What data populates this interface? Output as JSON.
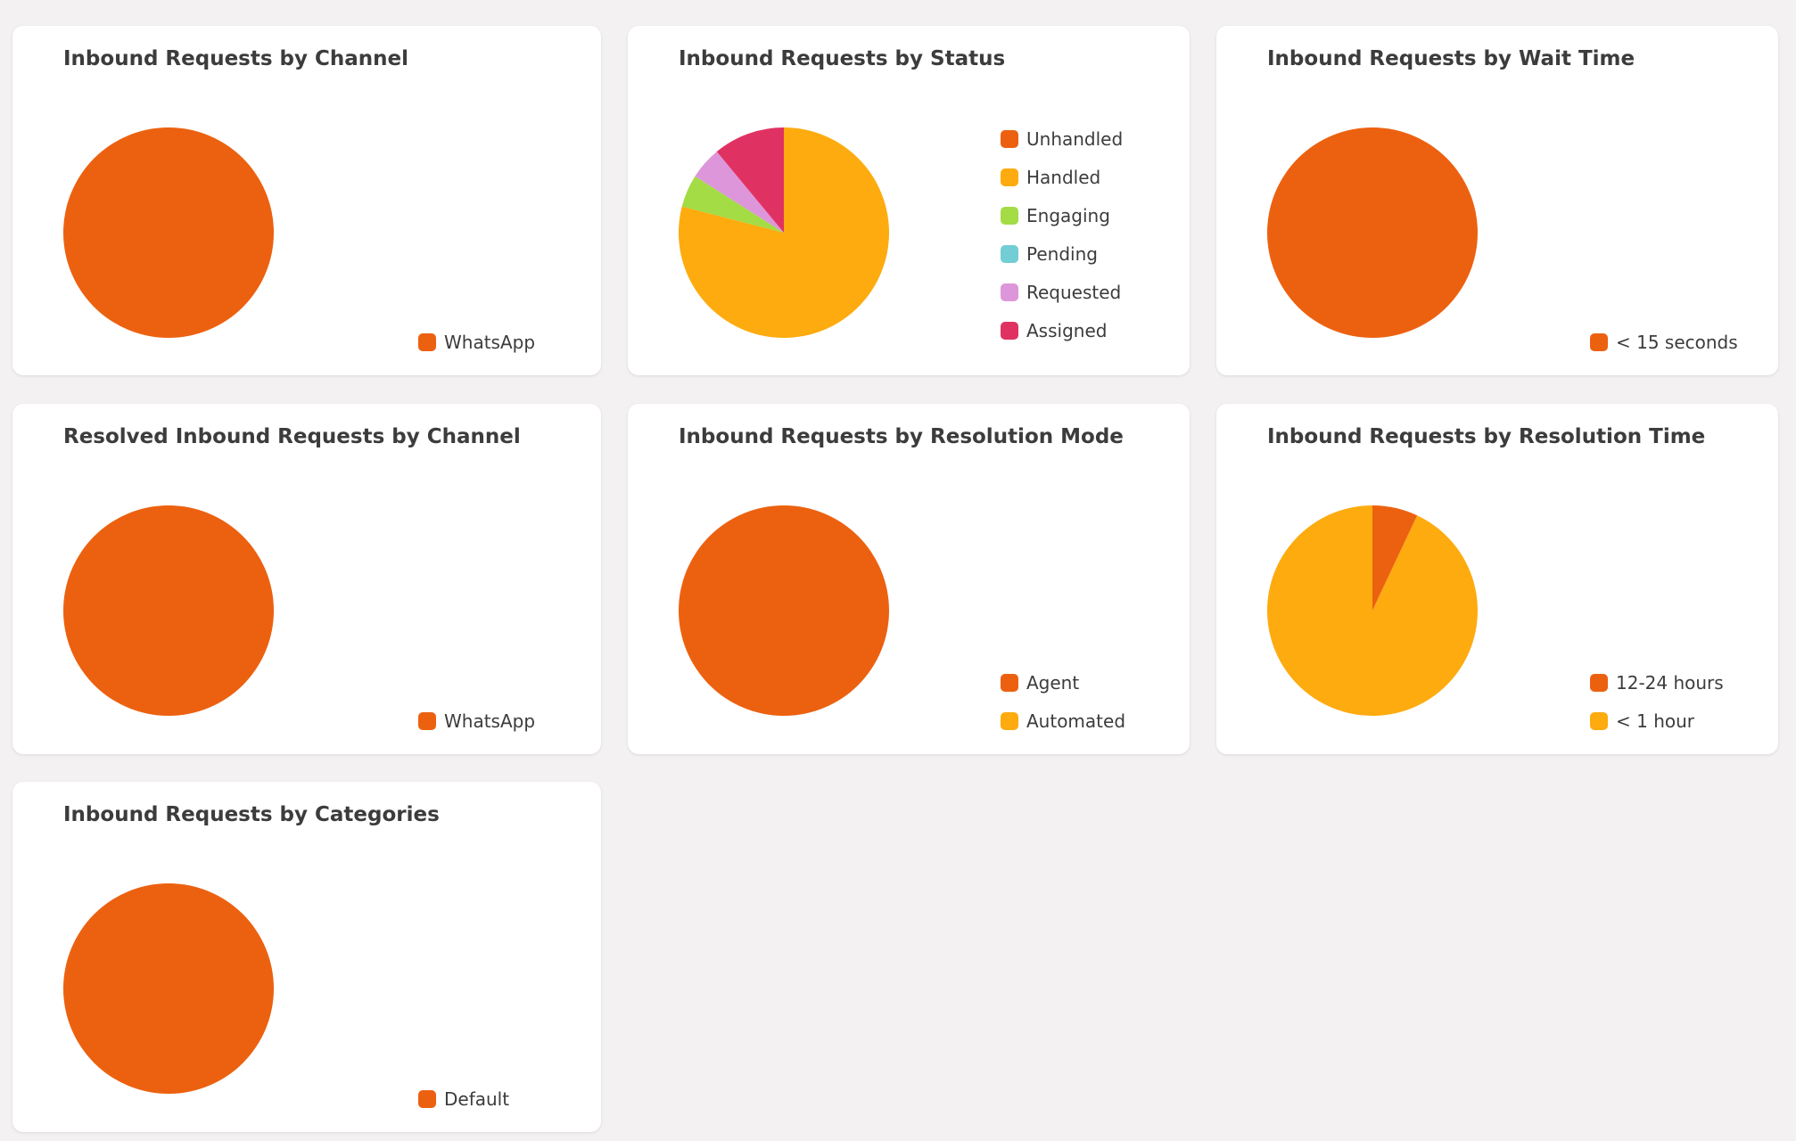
{
  "colors": {
    "orange": "#ec6110",
    "amber": "#fdab0e",
    "green": "#a3dc45",
    "teal": "#72cdd4",
    "lilac": "#dd96da",
    "crimson": "#e03262"
  },
  "chart_data": [
    {
      "type": "pie",
      "title": "Inbound Requests by Channel",
      "legend_placement": "bottom-right",
      "slices": [
        {
          "label": "WhatsApp",
          "value": 100,
          "color": "#ec6110"
        }
      ]
    },
    {
      "type": "pie",
      "title": "Inbound Requests by Status",
      "legend_placement": "right",
      "slices": [
        {
          "label": "Unhandled",
          "value": 0,
          "color": "#ec6110"
        },
        {
          "label": "Handled",
          "value": 79,
          "color": "#fdab0e"
        },
        {
          "label": "Engaging",
          "value": 5,
          "color": "#a3dc45"
        },
        {
          "label": "Pending",
          "value": 0,
          "color": "#72cdd4"
        },
        {
          "label": "Requested",
          "value": 5,
          "color": "#dd96da"
        },
        {
          "label": "Assigned",
          "value": 11,
          "color": "#e03262"
        }
      ]
    },
    {
      "type": "pie",
      "title": "Inbound Requests by Wait Time",
      "legend_placement": "bottom-right",
      "slices": [
        {
          "label": "< 15 seconds",
          "value": 100,
          "color": "#ec6110"
        }
      ]
    },
    {
      "type": "pie",
      "title": "Resolved Inbound Requests by Channel",
      "legend_placement": "bottom-right",
      "slices": [
        {
          "label": "WhatsApp",
          "value": 100,
          "color": "#ec6110"
        }
      ]
    },
    {
      "type": "pie",
      "title": "Inbound Requests by Resolution Mode",
      "legend_placement": "bottom-right",
      "slices": [
        {
          "label": "Agent",
          "value": 100,
          "color": "#ec6110"
        },
        {
          "label": "Automated",
          "value": 0,
          "color": "#fdab0e"
        }
      ]
    },
    {
      "type": "pie",
      "title": "Inbound Requests by Resolution Time",
      "legend_placement": "bottom-right",
      "slices": [
        {
          "label": "12-24 hours",
          "value": 7,
          "color": "#ec6110"
        },
        {
          "label": "< 1 hour",
          "value": 93,
          "color": "#fdab0e"
        }
      ]
    },
    {
      "type": "pie",
      "title": "Inbound Requests by Categories",
      "legend_placement": "bottom-right",
      "slices": [
        {
          "label": "Default",
          "value": 100,
          "color": "#ec6110"
        }
      ]
    }
  ]
}
